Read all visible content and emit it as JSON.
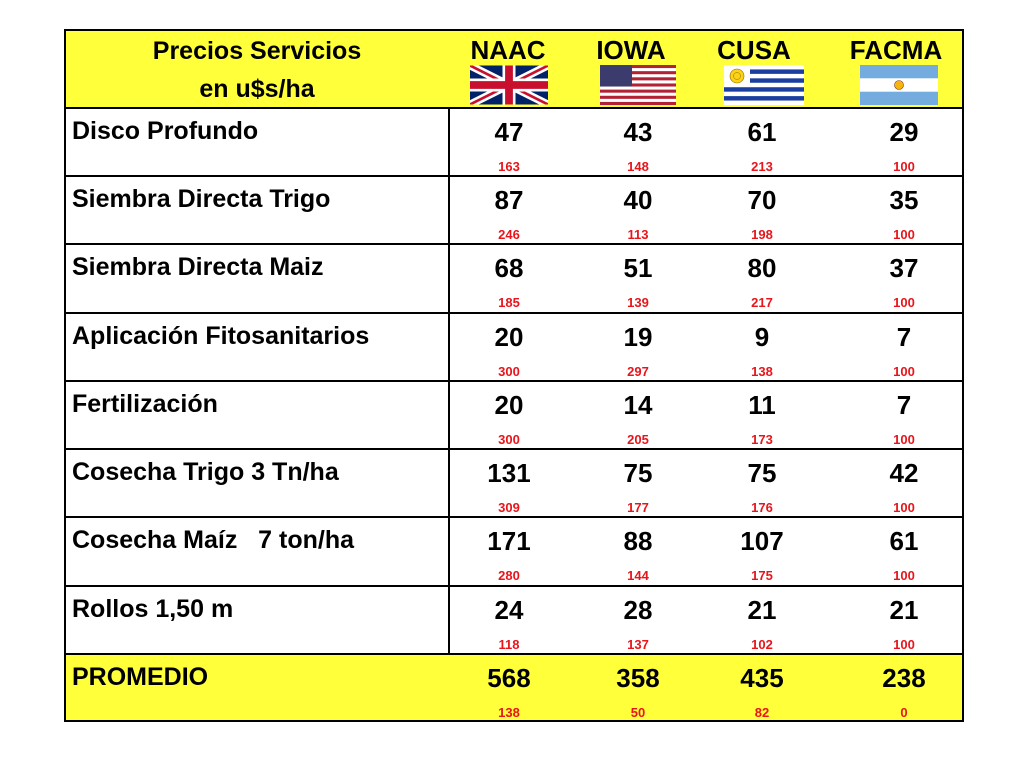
{
  "header": {
    "title_line1": "Precios Servicios",
    "title_line2": "en u$s/ha",
    "countries": [
      {
        "name": "NAAC",
        "flag": "uk-flag-icon"
      },
      {
        "name": "IOWA",
        "flag": "usa-flag-icon"
      },
      {
        "name": "CUSA",
        "flag": "uruguay-flag-icon"
      },
      {
        "name": "FACMA",
        "flag": "argentina-flag-icon"
      }
    ]
  },
  "colors": {
    "highlight": "#ffff3a",
    "index_text": "#e8151b"
  },
  "rows": [
    {
      "label": "Disco Profundo",
      "values": [
        "47",
        "43",
        "61",
        "29"
      ],
      "index": [
        "163",
        "148",
        "213",
        "100"
      ]
    },
    {
      "label": "Siembra Directa Trigo",
      "values": [
        "87",
        "40",
        "70",
        "35"
      ],
      "index": [
        "246",
        "113",
        "198",
        "100"
      ]
    },
    {
      "label": "Siembra Directa Maiz",
      "values": [
        "68",
        "51",
        "80",
        "37"
      ],
      "index": [
        "185",
        "139",
        "217",
        "100"
      ]
    },
    {
      "label": "Aplicación Fitosanitarios",
      "values": [
        "20",
        "19",
        "9",
        "7"
      ],
      "index": [
        "300",
        "297",
        "138",
        "100"
      ]
    },
    {
      "label": "Fertilización",
      "values": [
        "20",
        "14",
        "11",
        "7"
      ],
      "index": [
        "300",
        "205",
        "173",
        "100"
      ]
    },
    {
      "label": "Cosecha Trigo  3 Tn/ha",
      "values": [
        "131",
        "75",
        "75",
        "42"
      ],
      "index": [
        "309",
        "177",
        "176",
        "100"
      ]
    },
    {
      "label": "Cosecha Maíz   7 ton/ha",
      "values": [
        "171",
        "88",
        "107",
        "61"
      ],
      "index": [
        "280",
        "144",
        "175",
        "100"
      ]
    },
    {
      "label": "Rollos 1,50 m",
      "values": [
        "24",
        "28",
        "21",
        "21"
      ],
      "index": [
        "118",
        "137",
        "102",
        "100"
      ]
    }
  ],
  "footer": {
    "label": "PROMEDIO",
    "values": [
      "568",
      "358",
      "435",
      "238"
    ],
    "index": [
      "138",
      "50",
      "82",
      "0"
    ]
  }
}
